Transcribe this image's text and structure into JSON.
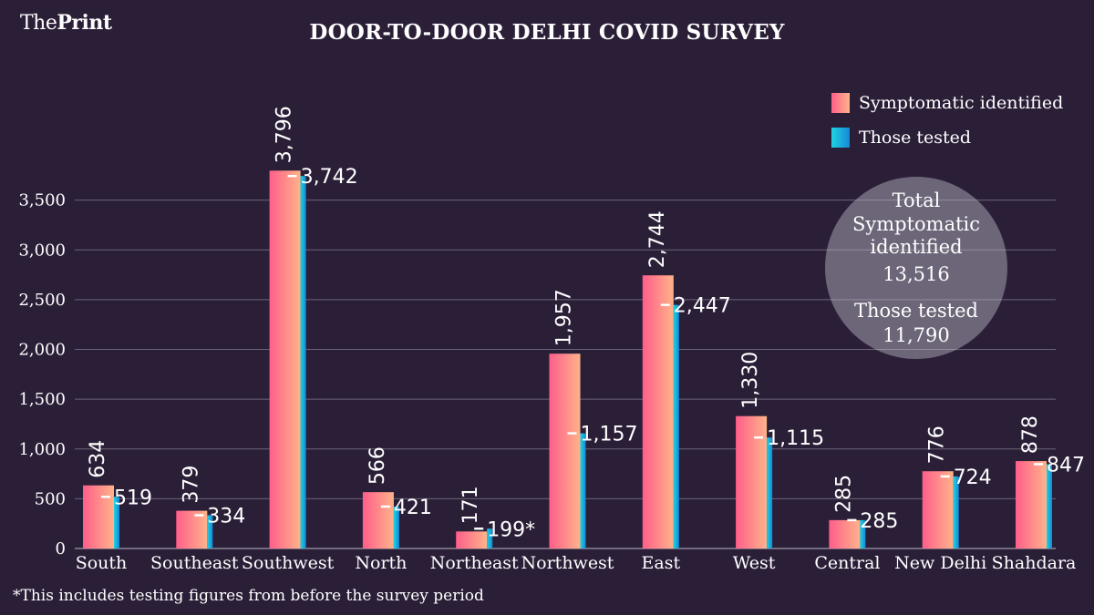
{
  "brand": {
    "logo_the": "The",
    "logo_print": "Print"
  },
  "footnote": "*This includes testing figures from before the survey period",
  "summary": {
    "line1": "Total",
    "line2": "Symptomatic",
    "line3": "identified",
    "total_symptomatic": "13,516",
    "tested_label": "Those tested",
    "total_tested": "11,790"
  },
  "colors": {
    "background": "#2b1f38",
    "symptomatic_left": "#ff5e8a",
    "symptomatic_right": "#ffb38a",
    "tested_left": "#1fd2e0",
    "tested_right": "#1689d8"
  },
  "chart_data": {
    "type": "bar",
    "title": "DOOR-TO-DOOR DELHI COVID SURVEY",
    "categories": [
      "South",
      "Southeast",
      "Southwest",
      "North",
      "Northeast",
      "Northwest",
      "East",
      "West",
      "Central",
      "New Delhi",
      "Shahdara"
    ],
    "series": [
      {
        "name": "Symptomatic identified",
        "values": [
          634,
          379,
          3796,
          566,
          171,
          1957,
          2744,
          1330,
          285,
          776,
          878
        ],
        "labels": [
          "634",
          "379",
          "3,796",
          "566",
          "171",
          "1,957",
          "2,744",
          "1,330",
          "285",
          "776",
          "878"
        ]
      },
      {
        "name": "Those tested",
        "values": [
          519,
          334,
          3742,
          421,
          199,
          1157,
          2447,
          1115,
          285,
          724,
          847
        ],
        "labels": [
          "519",
          "334",
          "3,742",
          "421",
          "199*",
          "1,157",
          "2,447",
          "1,115",
          "285",
          "724",
          "847"
        ]
      }
    ],
    "yticks": [
      0,
      500,
      1000,
      1500,
      2000,
      2500,
      3000,
      3500
    ],
    "ytick_labels": [
      "0",
      "500",
      "1,000",
      "1,500",
      "2,000",
      "2,500",
      "3,000",
      "3,500"
    ],
    "ylim": [
      0,
      3950
    ],
    "grid": true,
    "legend": "top-right"
  }
}
